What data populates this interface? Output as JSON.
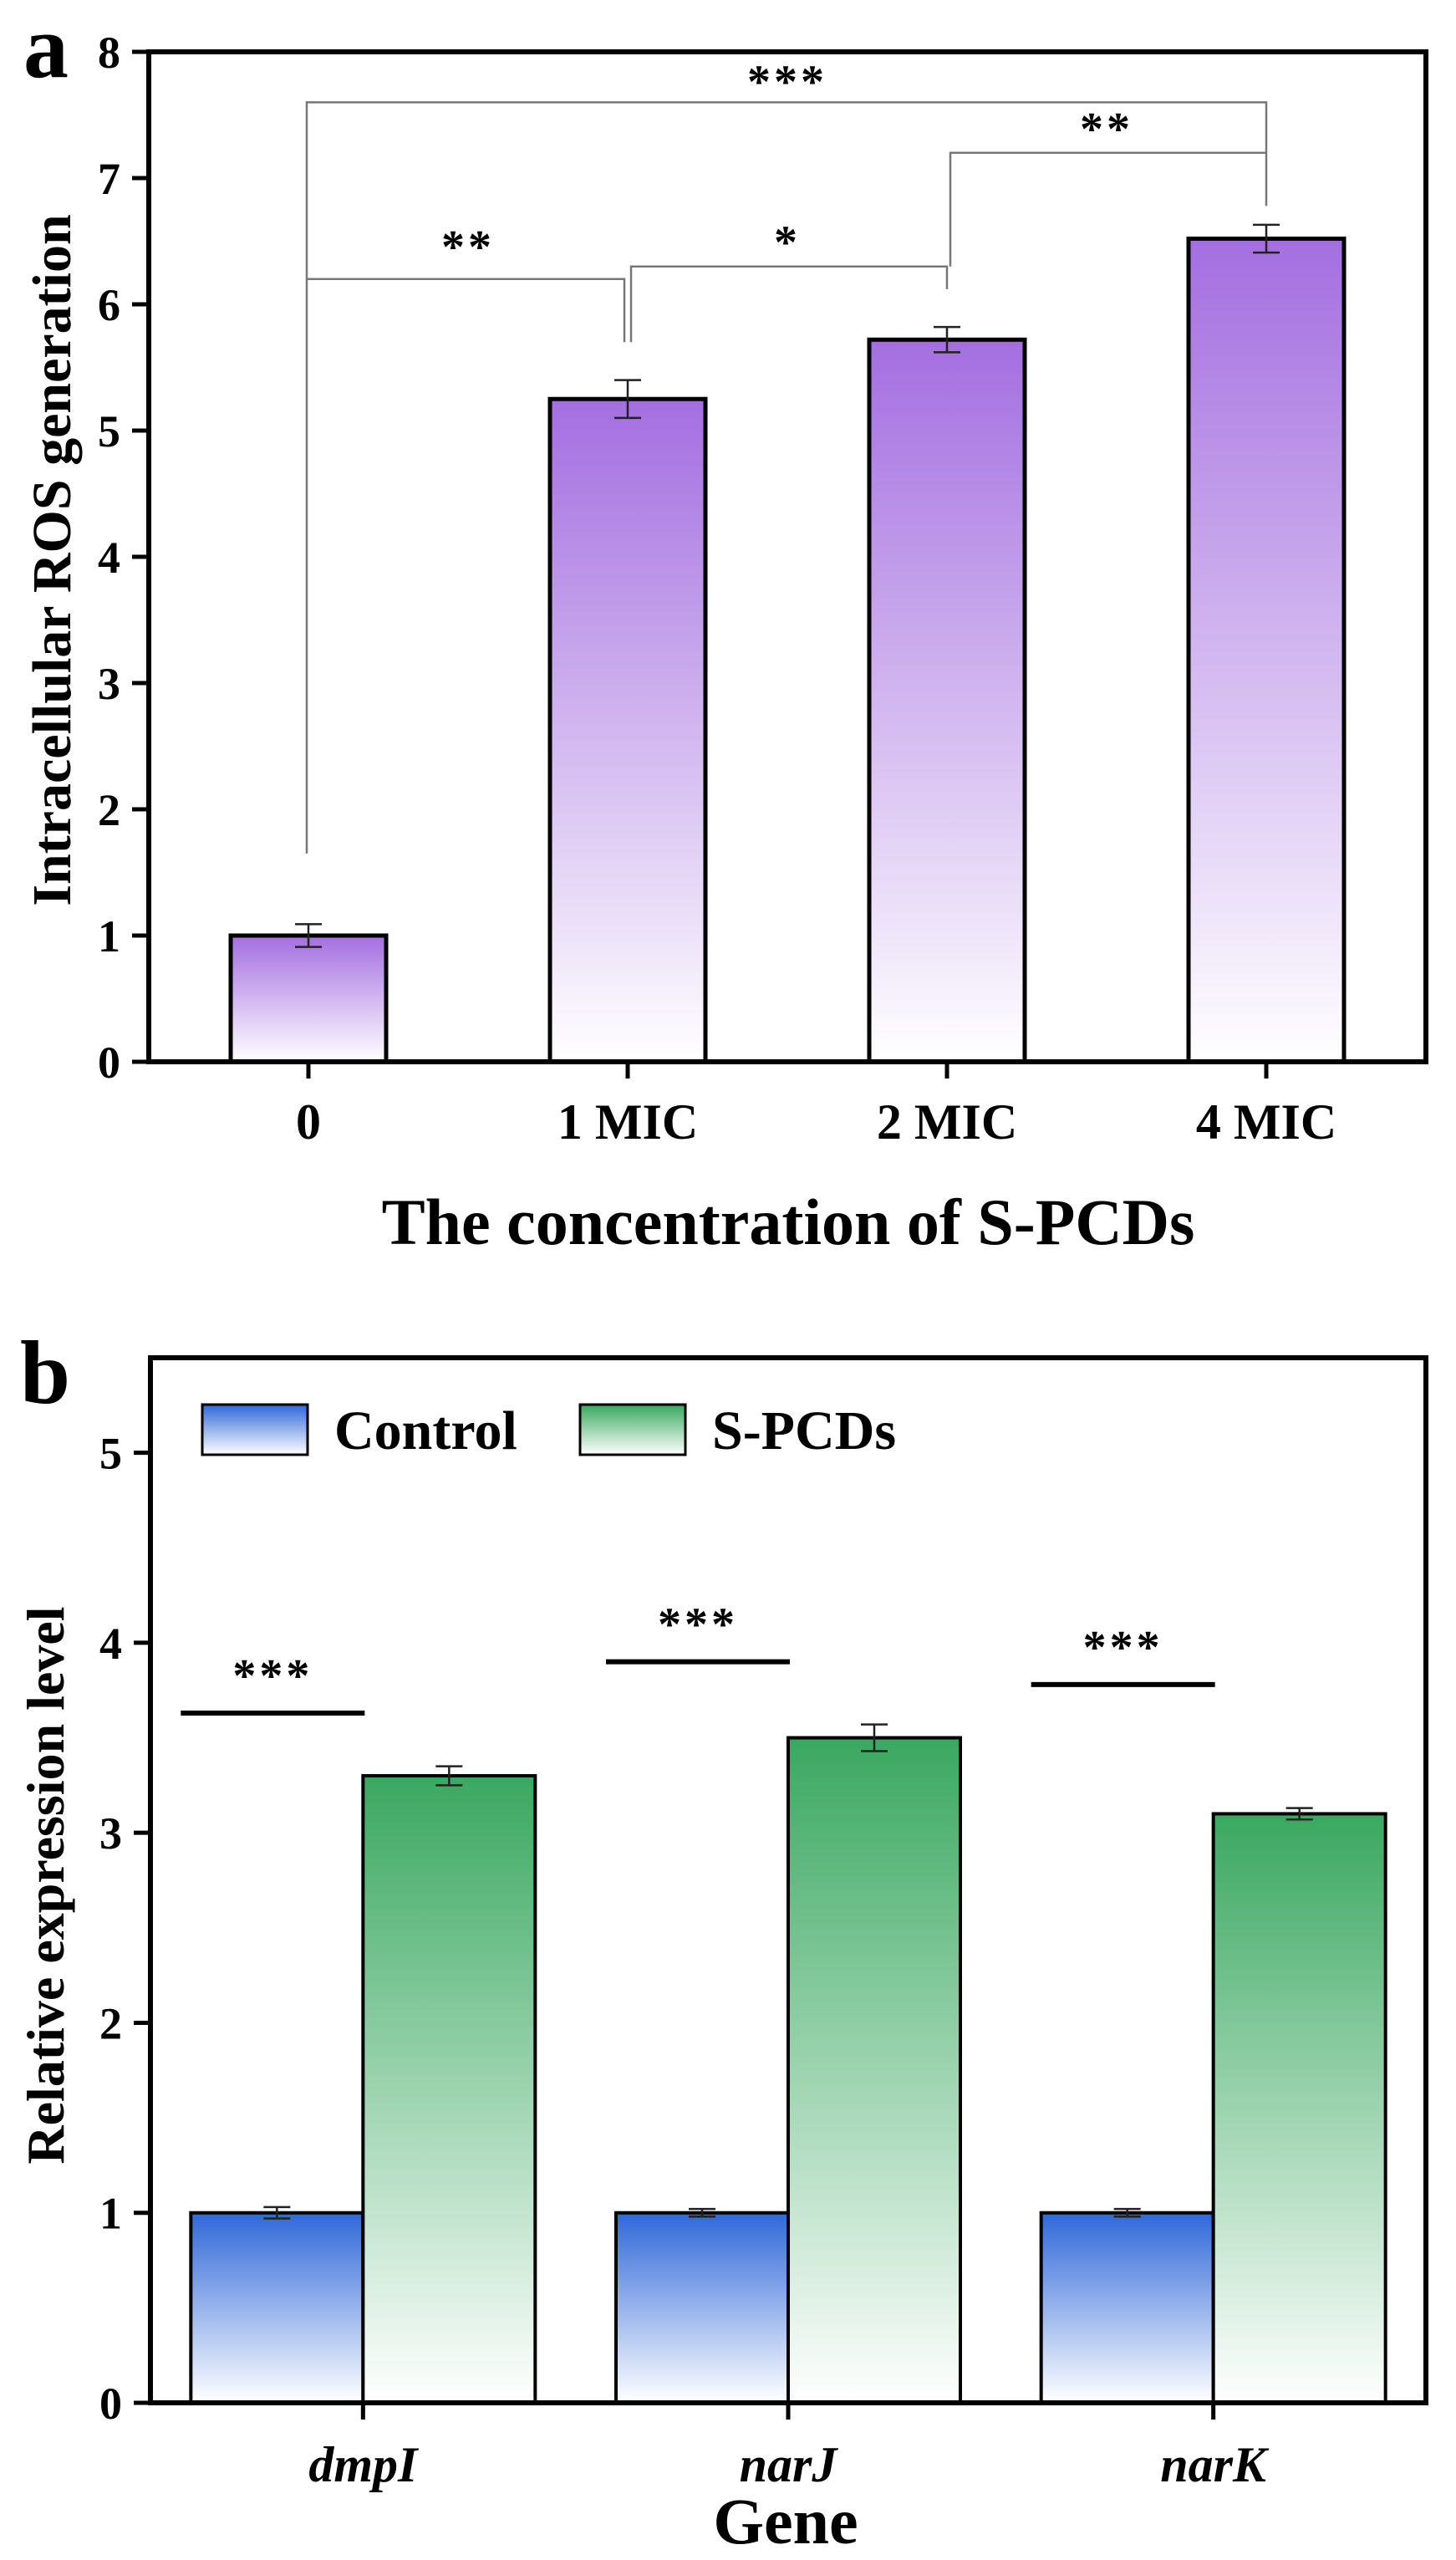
{
  "panels": {
    "a": "a",
    "b": "b"
  },
  "chart_data": [
    {
      "id": "a",
      "type": "bar",
      "title": "",
      "xlabel": "The concentration of S-PCDs",
      "ylabel": "Intracellular ROS generation",
      "categories": [
        "0",
        "1 MIC",
        "2 MIC",
        "4 MIC"
      ],
      "values": [
        1.0,
        5.25,
        5.72,
        6.52
      ],
      "errors": [
        0.09,
        0.15,
        0.1,
        0.11
      ],
      "ylim": [
        0,
        8
      ],
      "yticks": [
        0,
        1,
        2,
        3,
        4,
        5,
        6,
        7,
        8
      ],
      "grid": false,
      "color_top": "#a46ee0",
      "color_bottom": "#ffffff",
      "significance": [
        {
          "from": 0,
          "to": 3,
          "level": 6.62,
          "label": "***"
        },
        {
          "from": 0,
          "to": 1,
          "level": 6.2,
          "label": "**"
        },
        {
          "from": 1,
          "to": 2,
          "level": 6.3,
          "label": "*"
        },
        {
          "from": 2,
          "to": 3,
          "level": 7.2,
          "label": "**"
        }
      ]
    },
    {
      "id": "b",
      "type": "bar",
      "title": "",
      "xlabel": "Gene",
      "ylabel": "Relative expression level",
      "categories": [
        "dmpI",
        "narJ",
        "narK"
      ],
      "series": [
        {
          "name": "Control",
          "values": [
            1.0,
            1.0,
            1.0
          ],
          "errors": [
            0.03,
            0.02,
            0.02
          ],
          "color_top": "#2f68d8",
          "color_bottom": "#ffffff"
        },
        {
          "name": "S-PCDs",
          "values": [
            3.3,
            3.5,
            3.1
          ],
          "errors": [
            0.05,
            0.07,
            0.03
          ],
          "color_top": "#3aa860",
          "color_bottom": "#ffffff"
        }
      ],
      "ylim": [
        0,
        5.5
      ],
      "yticks": [
        0,
        1,
        2,
        3,
        4,
        5
      ],
      "grid": false,
      "legend_position": "top-left",
      "significance": [
        {
          "group": 0,
          "level": 3.63,
          "label": "***"
        },
        {
          "group": 1,
          "level": 3.9,
          "label": "***"
        },
        {
          "group": 2,
          "level": 3.78,
          "label": "***"
        }
      ]
    }
  ]
}
